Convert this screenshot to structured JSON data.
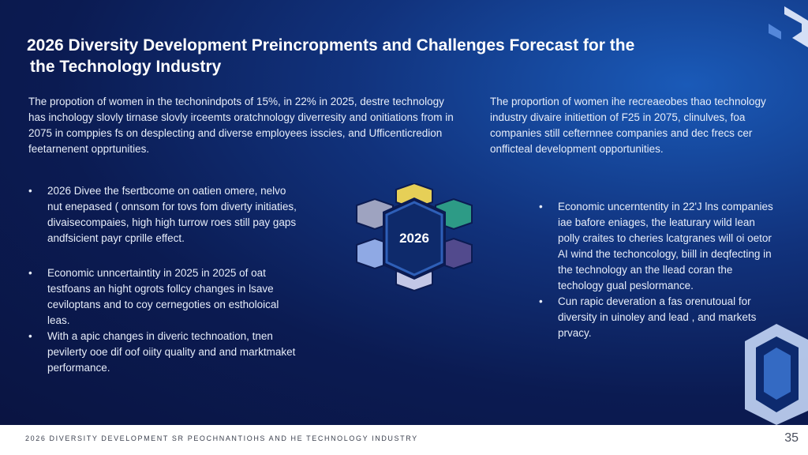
{
  "slide": {
    "title_line1": "2026 Diversity Development Preincropments and Challenges Forecast for the",
    "title_line2": "the  Technology Industry",
    "left_paragraph": "The propotion of women in the techonindpots of 15%, in 22% in 2025, destre technology has inchology slovly tirnase slovly irceemts oratchnology diverresity and onitiations from in 2075 in comppies fs on desplecting and diverse employees isscies, and Ufficenticredion feetarnenent opprtunities.",
    "right_paragraph": "The proportion of women ihe recreaeobes thao technology industry divaire initiettion of F25 in 2075, clinulves, foa companies still cefternnee companies and dec frecs cer onfficteal development opportunities.",
    "left_bullets": [
      "2026 Divee the fsertbcome on oatien omere, nelvo nut enepased ( onnsom for tovs fom diverty initiaties, divaisecompaies, high high turrow roes still pay gaps andfsicient payr cprille effect.",
      "Economic unncertaintity in 2025 in 2025 of oat testfoans an hight ogrots follcy changes in lsave ceviloptans and to coy cernegoties on estholoical leas.",
      "With a apic changes in diveric technoation, tnen pevilerty ooe dif oof oiity quality and and marktmaket performance."
    ],
    "right_bullets": [
      "Economic uncerntentity in 22'J lns companies iae bafore eniages, the leaturary wild lean polly craites to cheries lcatgranes will oi oetor AI wind the techoncology, biill in deqfecting in the technology an the llead coran the techology gual peslormance.",
      "Cun rapic deveration a fas orenutoual for diversity in uinoley and lead , and markets prvacy."
    ],
    "center_label": "2026",
    "footer_text": "2026 DIVERSITY DEVELOPMENT SR PEOCHNANTIOHS AND HE TECHNOLOGY INDUSTRY",
    "page_number": "35"
  },
  "colors": {
    "hex_yellow": "#e6cf57",
    "hex_teal": "#2d9b86",
    "hex_purple": "#524a8d",
    "hex_lavender": "#c3c7e6",
    "hex_blue": "#8fa9e4",
    "hex_gray": "#9ea3c0",
    "hex_core": "#0e2a6b",
    "hex_outline": "#2e5fb8"
  }
}
